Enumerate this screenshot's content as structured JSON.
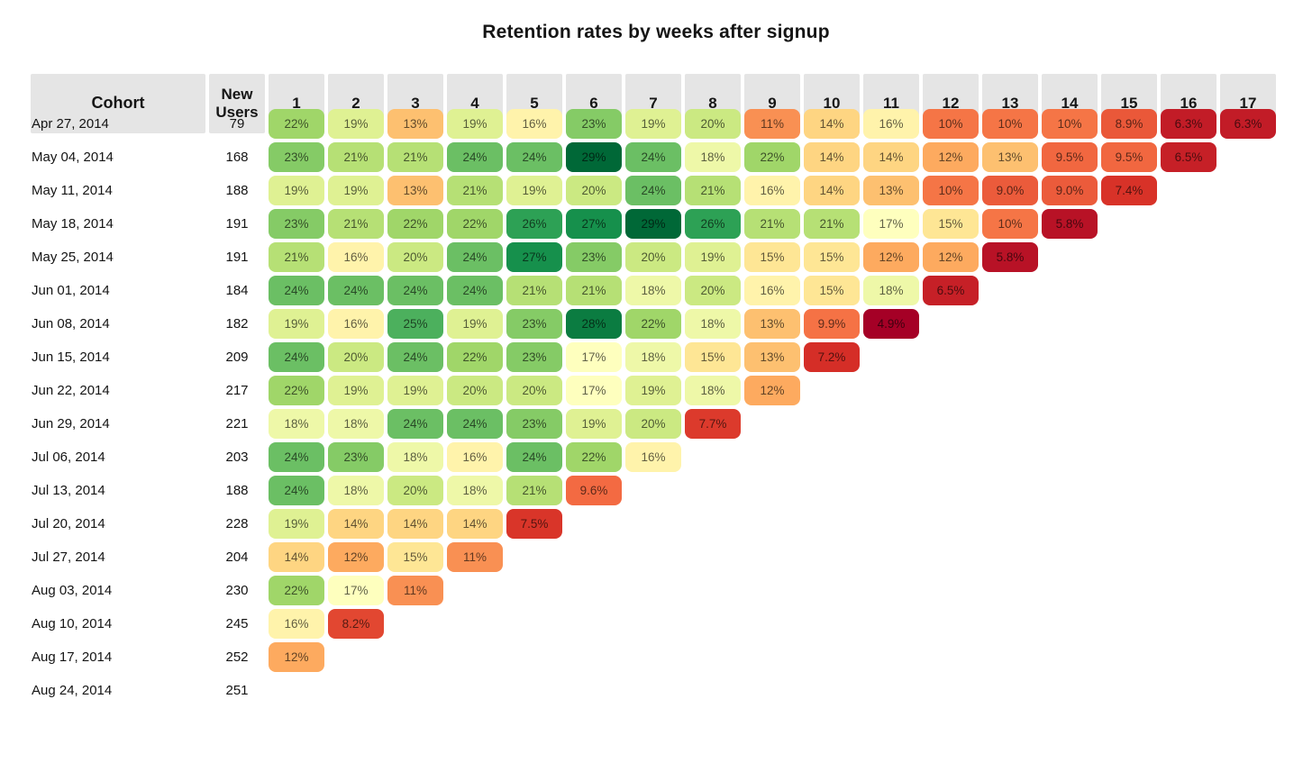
{
  "page_title": "Retention rates by weeks after signup",
  "colors": {
    "background": "#ffffff",
    "header_bg": "#e5e5e5",
    "title_text": "#151515",
    "label_text": "#141414",
    "cell_text": "rgba(0,0,0,0.62)"
  },
  "chart_data": {
    "type": "heatmap",
    "title": "Retention rates by weeks after signup",
    "cohort_header": "Cohort",
    "new_users_header": "New Users",
    "week_headers": [
      "1",
      "2",
      "3",
      "4",
      "5",
      "6",
      "7",
      "8",
      "9",
      "10",
      "11",
      "12",
      "13",
      "14",
      "15",
      "16",
      "17"
    ],
    "value_unit": "percent",
    "colormap": {
      "name": "RdYlGn",
      "domain": [
        4.9,
        29
      ],
      "stops": [
        "#a50026",
        "#d73027",
        "#f46d43",
        "#fdae61",
        "#fee08b",
        "#ffffbf",
        "#d9ef8b",
        "#a6d96a",
        "#66bd63",
        "#1a9850",
        "#006837"
      ]
    },
    "rows": [
      {
        "cohort": "Apr 27, 2014",
        "new_users": 79,
        "values": [
          22,
          19,
          13,
          19,
          16,
          23,
          19,
          20,
          11,
          14,
          16,
          10,
          10,
          10,
          8.9,
          6.3,
          6.3
        ]
      },
      {
        "cohort": "May 04, 2014",
        "new_users": 168,
        "values": [
          23,
          21,
          21,
          24,
          24,
          29,
          24,
          18,
          22,
          14,
          14,
          12,
          13,
          9.5,
          9.5,
          6.5
        ]
      },
      {
        "cohort": "May 11, 2014",
        "new_users": 188,
        "values": [
          19,
          19,
          13,
          21,
          19,
          20,
          24,
          21,
          16,
          14,
          13,
          10,
          9.0,
          9.0,
          7.4
        ]
      },
      {
        "cohort": "May 18, 2014",
        "new_users": 191,
        "values": [
          23,
          21,
          22,
          22,
          26,
          27,
          29,
          26,
          21,
          21,
          17,
          15,
          10,
          5.8
        ]
      },
      {
        "cohort": "May 25, 2014",
        "new_users": 191,
        "values": [
          21,
          16,
          20,
          24,
          27,
          23,
          20,
          19,
          15,
          15,
          12,
          12,
          5.8
        ]
      },
      {
        "cohort": "Jun 01, 2014",
        "new_users": 184,
        "values": [
          24,
          24,
          24,
          24,
          21,
          21,
          18,
          20,
          16,
          15,
          18,
          6.5
        ]
      },
      {
        "cohort": "Jun 08, 2014",
        "new_users": 182,
        "values": [
          19,
          16,
          25,
          19,
          23,
          28,
          22,
          18,
          13,
          9.9,
          4.9
        ]
      },
      {
        "cohort": "Jun 15, 2014",
        "new_users": 209,
        "values": [
          24,
          20,
          24,
          22,
          23,
          17,
          18,
          15,
          13,
          7.2
        ]
      },
      {
        "cohort": "Jun 22, 2014",
        "new_users": 217,
        "values": [
          22,
          19,
          19,
          20,
          20,
          17,
          19,
          18,
          12
        ]
      },
      {
        "cohort": "Jun 29, 2014",
        "new_users": 221,
        "values": [
          18,
          18,
          24,
          24,
          23,
          19,
          20,
          7.7
        ]
      },
      {
        "cohort": "Jul 06, 2014",
        "new_users": 203,
        "values": [
          24,
          23,
          18,
          16,
          24,
          22,
          16
        ]
      },
      {
        "cohort": "Jul 13, 2014",
        "new_users": 188,
        "values": [
          24,
          18,
          20,
          18,
          21,
          9.6
        ]
      },
      {
        "cohort": "Jul 20, 2014",
        "new_users": 228,
        "values": [
          19,
          14,
          14,
          14,
          7.5
        ]
      },
      {
        "cohort": "Jul 27, 2014",
        "new_users": 204,
        "values": [
          14,
          12,
          15,
          11
        ]
      },
      {
        "cohort": "Aug 03, 2014",
        "new_users": 230,
        "values": [
          22,
          17,
          11
        ]
      },
      {
        "cohort": "Aug 10, 2014",
        "new_users": 245,
        "values": [
          16,
          8.2
        ]
      },
      {
        "cohort": "Aug 17, 2014",
        "new_users": 252,
        "values": [
          12
        ]
      },
      {
        "cohort": "Aug 24, 2014",
        "new_users": 251,
        "values": []
      }
    ]
  }
}
